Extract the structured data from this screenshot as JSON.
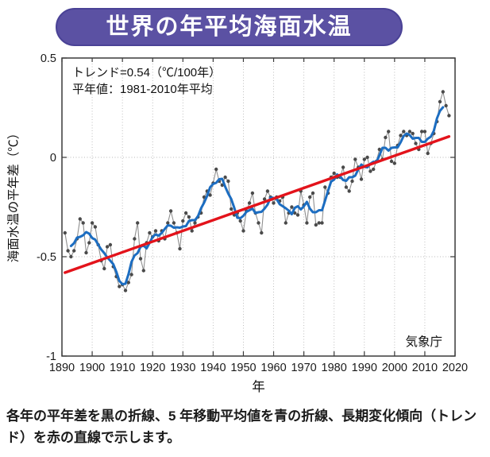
{
  "page": {
    "background": "#ffffff"
  },
  "banner": {
    "title": "世界の年平均海面水温",
    "bg_color": "#5b51a3",
    "border_color": "#4a4296",
    "text_color": "#ffffff"
  },
  "caption": "各年の平年差を黒の折線、5 年移動平均値を青の折線、長期変化傾向（トレンド）を赤の直線で示します。",
  "chart_data": {
    "type": "line",
    "title": "世界の年平均海面水温",
    "xlabel": "年",
    "ylabel": "海面水温の平年差（℃）",
    "xlim": [
      1890,
      2020
    ],
    "ylim": [
      -1,
      0.5
    ],
    "x_ticks": [
      1890,
      1900,
      1910,
      1920,
      1930,
      1940,
      1950,
      1960,
      1970,
      1980,
      1990,
      2000,
      2010,
      2020
    ],
    "y_ticks": [
      0.5,
      0,
      -0.5,
      -1
    ],
    "y_tick_labels": [
      "0.5",
      "0",
      "-0.5",
      "-1"
    ],
    "gridlines": {
      "x": [
        1900,
        1910,
        1920,
        1930,
        1940,
        1950,
        1960,
        1970,
        1980,
        1990,
        2000,
        2010
      ],
      "y": [
        0,
        -0.5
      ],
      "style": "dotted"
    },
    "annotations": {
      "trend_label": "トレンド=0.54（℃/100年）",
      "baseline_label": "平年値：1981-2010年平均",
      "source_label": "気象庁"
    },
    "series": [
      {
        "name": "各年の平年差",
        "legend_desc": "黒の折線",
        "color_line": "#8f8f8f",
        "color_marker": "#4a4a4a",
        "year_start": 1891,
        "values": [
          -0.38,
          -0.47,
          -0.5,
          -0.47,
          -0.41,
          -0.31,
          -0.33,
          -0.48,
          -0.43,
          -0.33,
          -0.35,
          -0.44,
          -0.52,
          -0.56,
          -0.45,
          -0.44,
          -0.55,
          -0.6,
          -0.65,
          -0.64,
          -0.67,
          -0.63,
          -0.59,
          -0.41,
          -0.33,
          -0.51,
          -0.57,
          -0.43,
          -0.38,
          -0.4,
          -0.37,
          -0.42,
          -0.37,
          -0.41,
          -0.33,
          -0.27,
          -0.33,
          -0.38,
          -0.46,
          -0.32,
          -0.28,
          -0.3,
          -0.37,
          -0.33,
          -0.3,
          -0.28,
          -0.2,
          -0.17,
          -0.19,
          -0.13,
          -0.06,
          -0.12,
          -0.14,
          -0.1,
          -0.12,
          -0.26,
          -0.29,
          -0.28,
          -0.32,
          -0.37,
          -0.27,
          -0.23,
          -0.18,
          -0.28,
          -0.33,
          -0.38,
          -0.21,
          -0.17,
          -0.2,
          -0.23,
          -0.2,
          -0.22,
          -0.2,
          -0.33,
          -0.28,
          -0.25,
          -0.28,
          -0.29,
          -0.17,
          -0.24,
          -0.33,
          -0.2,
          -0.18,
          -0.34,
          -0.33,
          -0.33,
          -0.15,
          -0.18,
          -0.1,
          -0.08,
          -0.1,
          -0.1,
          -0.05,
          -0.15,
          -0.17,
          -0.12,
          -0.01,
          -0.05,
          -0.11,
          -0.01,
          0.0,
          -0.07,
          -0.06,
          -0.02,
          0.04,
          -0.01,
          0.1,
          0.13,
          -0.02,
          -0.03,
          0.06,
          0.11,
          0.13,
          0.11,
          0.13,
          0.12,
          0.07,
          0.04,
          0.13,
          0.13,
          0.02,
          0.07,
          0.12,
          0.18,
          0.28,
          0.33,
          0.26,
          0.21
        ]
      },
      {
        "name": "5年移動平均値",
        "legend_desc": "青の折線",
        "color": "#1c6dc1",
        "window": 5,
        "derived_from": "各年の平年差"
      },
      {
        "name": "長期変化傾向（トレンド）",
        "legend_desc": "赤の直線",
        "color": "#e3131b",
        "trend_c_per_100yr": 0.54,
        "x": [
          1891,
          2018
        ],
        "y": [
          -0.58,
          0.105
        ]
      }
    ]
  }
}
